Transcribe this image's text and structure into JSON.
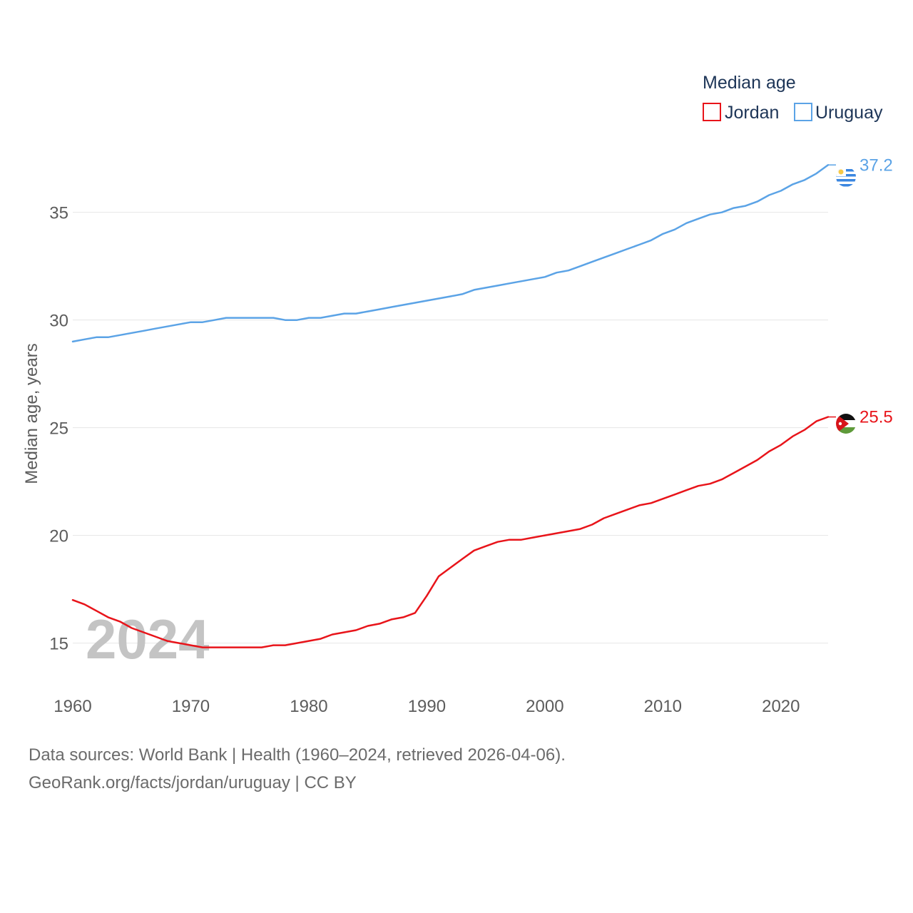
{
  "chart_data": {
    "type": "line",
    "title": "Median age",
    "ylabel": "Median age, years",
    "xlabel": "",
    "xlim": [
      1960,
      2024
    ],
    "ylim": [
      13,
      38.5
    ],
    "yticks": [
      15,
      20,
      25,
      30,
      35
    ],
    "xticks": [
      1960,
      1970,
      1980,
      1990,
      2000,
      2010,
      2020
    ],
    "year_watermark": "2024",
    "x": [
      1960,
      1961,
      1962,
      1963,
      1964,
      1965,
      1966,
      1967,
      1968,
      1969,
      1970,
      1971,
      1972,
      1973,
      1974,
      1975,
      1976,
      1977,
      1978,
      1979,
      1980,
      1981,
      1982,
      1983,
      1984,
      1985,
      1986,
      1987,
      1988,
      1989,
      1990,
      1991,
      1992,
      1993,
      1994,
      1995,
      1996,
      1997,
      1998,
      1999,
      2000,
      2001,
      2002,
      2003,
      2004,
      2005,
      2006,
      2007,
      2008,
      2009,
      2010,
      2011,
      2012,
      2013,
      2014,
      2015,
      2016,
      2017,
      2018,
      2019,
      2020,
      2021,
      2022,
      2023,
      2024
    ],
    "series": [
      {
        "name": "Jordan",
        "color": "#e8141a",
        "end_label": "25.5",
        "flag": "jordan-flag-icon",
        "values": [
          17.0,
          16.8,
          16.5,
          16.2,
          16.0,
          15.7,
          15.5,
          15.3,
          15.1,
          15.0,
          14.9,
          14.8,
          14.8,
          14.8,
          14.8,
          14.8,
          14.8,
          14.9,
          14.9,
          15.0,
          15.1,
          15.2,
          15.4,
          15.5,
          15.6,
          15.8,
          15.9,
          16.1,
          16.2,
          16.4,
          17.2,
          18.1,
          18.5,
          18.9,
          19.3,
          19.5,
          19.7,
          19.8,
          19.8,
          19.9,
          20.0,
          20.1,
          20.2,
          20.3,
          20.5,
          20.8,
          21.0,
          21.2,
          21.4,
          21.5,
          21.7,
          21.9,
          22.1,
          22.3,
          22.4,
          22.6,
          22.9,
          23.2,
          23.5,
          23.9,
          24.2,
          24.6,
          24.9,
          25.3,
          25.5
        ]
      },
      {
        "name": "Uruguay",
        "color": "#5ba3e6",
        "end_label": "37.2",
        "flag": "uruguay-flag-icon",
        "values": [
          29.0,
          29.1,
          29.2,
          29.2,
          29.3,
          29.4,
          29.5,
          29.6,
          29.7,
          29.8,
          29.9,
          29.9,
          30.0,
          30.1,
          30.1,
          30.1,
          30.1,
          30.1,
          30.0,
          30.0,
          30.1,
          30.1,
          30.2,
          30.3,
          30.3,
          30.4,
          30.5,
          30.6,
          30.7,
          30.8,
          30.9,
          31.0,
          31.1,
          31.2,
          31.4,
          31.5,
          31.6,
          31.7,
          31.8,
          31.9,
          32.0,
          32.2,
          32.3,
          32.5,
          32.7,
          32.9,
          33.1,
          33.3,
          33.5,
          33.7,
          34.0,
          34.2,
          34.5,
          34.7,
          34.9,
          35.0,
          35.2,
          35.3,
          35.5,
          35.8,
          36.0,
          36.3,
          36.5,
          36.8,
          37.2
        ]
      }
    ],
    "legend": {
      "title": "Median age",
      "placement": "top-right"
    }
  },
  "footer": {
    "line1": "Data sources: World Bank | Health (1960–2024, retrieved 2026-04-06).",
    "line2": "GeoRank.org/facts/jordan/uruguay | CC BY"
  }
}
